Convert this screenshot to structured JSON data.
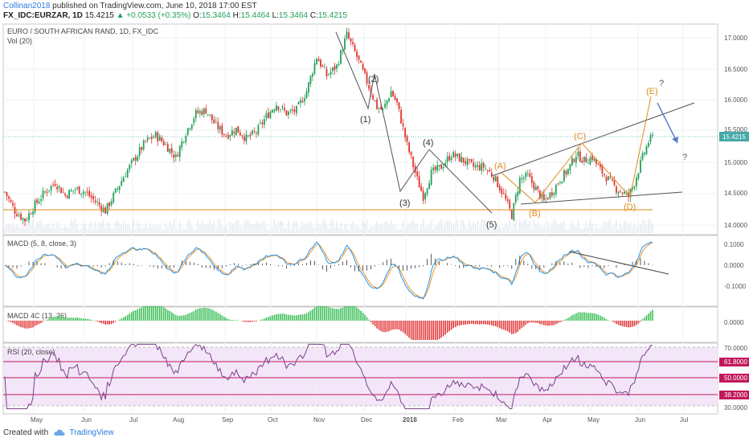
{
  "header": {
    "username": "Collinan2018",
    "published_text": "published on TradingView.com, June 10, 2018 17:00 EST",
    "symbol": "FX_IDC:EURZAR, 1D",
    "last": "15.4215",
    "change": "▲ +0.0533 (+0.35%)",
    "o_label": "O:",
    "o_val": "15.3464",
    "h_label": "H:",
    "h_val": "15.4464",
    "l_label": "L:",
    "l_val": "15.3464",
    "c_label": "C:",
    "c_val": "15.4215"
  },
  "panes": {
    "main_title": "EURO / SOUTH AFRICAN RAND, 1D, FX_IDC",
    "vol_title": "Vol (20)",
    "macd_title": "MACD (5, 8, close, 3)",
    "macd4c_title": "MACD 4C (13, 26)",
    "rsi_title": "RSI (20, close)"
  },
  "price_axis": [
    "17.0000",
    "16.5000",
    "16.0000",
    "15.5000",
    "15.0000",
    "14.5000",
    "14.0000"
  ],
  "price_last": "15.4215",
  "macd_axis": [
    "0.1000",
    "0.0000",
    "-0.1000"
  ],
  "macd4c_axis": [
    "0.0000"
  ],
  "rsi_axis": [
    "70.0000",
    "61.8000",
    "50.0000",
    "38.2000",
    "30.0000"
  ],
  "time_axis": [
    "May",
    "Jun",
    "Jul",
    "Aug",
    "Sep",
    "Oct",
    "Nov",
    "Dec",
    "2018",
    "Feb",
    "Mar",
    "Apr",
    "May",
    "Jun",
    "Jul"
  ],
  "wave_labels": {
    "w1": "(1)",
    "w2": "(2)",
    "w3": "(3)",
    "w4": "(4)",
    "w5": "(5)",
    "wA": "(A)",
    "wB": "(B)",
    "wC": "(C)",
    "wD": "(D)",
    "wE": "(E)",
    "q1": "?",
    "q2": "?"
  },
  "colors": {
    "up": "#22a05a",
    "down": "#e0342f",
    "orange": "#e08a1c",
    "macd_line": "#2196f3",
    "signal_line": "#f7941d",
    "rsi_line": "#7b3f8c",
    "rsi_fill": "#f3e6f8",
    "rsi_levels": "#c2185b"
  },
  "footer": {
    "created_with": "Created with",
    "brand": "TradingView"
  },
  "chart_data": {
    "type": "candlestick",
    "title": "EURO / SOUTH AFRICAN RAND, 1D, FX_IDC",
    "ylim": [
      13.8,
      17.2
    ],
    "close_path": [
      [
        0,
        14.55
      ],
      [
        5,
        14.25
      ],
      [
        10,
        14.1
      ],
      [
        15,
        14.35
      ],
      [
        20,
        14.55
      ],
      [
        25,
        14.7
      ],
      [
        30,
        14.5
      ],
      [
        35,
        14.6
      ],
      [
        40,
        14.55
      ],
      [
        45,
        14.4
      ],
      [
        50,
        14.25
      ],
      [
        55,
        14.55
      ],
      [
        60,
        14.85
      ],
      [
        65,
        15.1
      ],
      [
        70,
        15.35
      ],
      [
        75,
        15.45
      ],
      [
        80,
        15.3
      ],
      [
        85,
        15.1
      ],
      [
        90,
        15.5
      ],
      [
        95,
        15.8
      ],
      [
        100,
        15.85
      ],
      [
        105,
        15.6
      ],
      [
        110,
        15.45
      ],
      [
        115,
        15.55
      ],
      [
        120,
        15.4
      ],
      [
        125,
        15.5
      ],
      [
        130,
        15.75
      ],
      [
        135,
        15.95
      ],
      [
        140,
        15.8
      ],
      [
        145,
        15.85
      ],
      [
        150,
        16.15
      ],
      [
        155,
        16.7
      ],
      [
        160,
        16.4
      ],
      [
        165,
        16.55
      ],
      [
        170,
        17.05
      ],
      [
        175,
        16.7
      ],
      [
        180,
        16.3
      ],
      [
        185,
        15.9
      ],
      [
        188,
        15.85
      ],
      [
        192,
        16.15
      ],
      [
        195,
        15.95
      ],
      [
        200,
        15.3
      ],
      [
        205,
        14.75
      ],
      [
        208,
        14.48
      ],
      [
        212,
        14.85
      ],
      [
        217,
        14.95
      ],
      [
        222,
        15.15
      ],
      [
        228,
        15.05
      ],
      [
        233,
        14.95
      ],
      [
        238,
        14.95
      ],
      [
        243,
        14.8
      ],
      [
        248,
        14.5
      ],
      [
        252,
        14.18
      ],
      [
        256,
        14.75
      ],
      [
        260,
        14.8
      ],
      [
        264,
        14.6
      ],
      [
        268,
        14.4
      ],
      [
        272,
        14.55
      ],
      [
        276,
        14.75
      ],
      [
        280,
        14.9
      ],
      [
        284,
        15.15
      ],
      [
        288,
        15.05
      ],
      [
        292,
        15.1
      ],
      [
        296,
        14.9
      ],
      [
        300,
        14.75
      ],
      [
        304,
        14.6
      ],
      [
        307,
        14.55
      ],
      [
        310,
        14.48
      ],
      [
        313,
        14.7
      ],
      [
        317,
        15.1
      ],
      [
        320,
        15.35
      ],
      [
        322,
        15.42
      ]
    ],
    "elliott_impulse": {
      "labels": [
        "(1)",
        "(2)",
        "(3)",
        "(4)",
        "(5)"
      ],
      "levels": [
        15.85,
        16.2,
        14.5,
        15.2,
        14.18
      ]
    },
    "triangle": {
      "labels": [
        "(A)",
        "(B)",
        "(C)",
        "(D)",
        "(E)"
      ],
      "levels": [
        14.78,
        14.4,
        15.27,
        14.45,
        16.0
      ]
    },
    "support_level": 14.22,
    "rsi_levels": [
      61.8,
      50.0,
      38.2
    ],
    "rsi_range": [
      30,
      70
    ],
    "macd_range": [
      -0.15,
      0.12
    ]
  }
}
